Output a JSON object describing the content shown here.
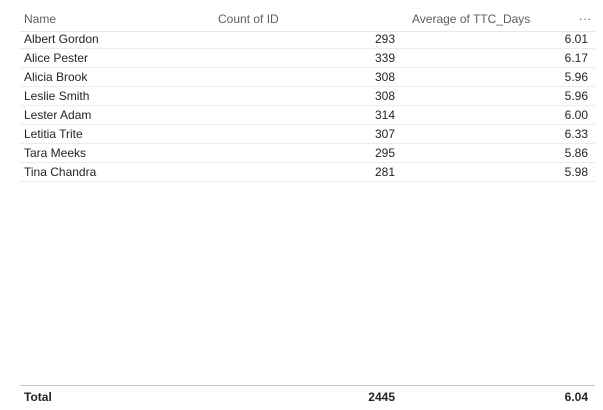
{
  "table": {
    "columns": {
      "name": "Name",
      "count": "Count of ID",
      "avg": "Average of TTC_Days"
    },
    "more_options": "...",
    "rows": [
      {
        "name": "Albert Gordon",
        "count": "293",
        "avg": "6.01"
      },
      {
        "name": "Alice Pester",
        "count": "339",
        "avg": "6.17"
      },
      {
        "name": "Alicia Brook",
        "count": "308",
        "avg": "5.96"
      },
      {
        "name": "Leslie Smith",
        "count": "308",
        "avg": "5.96"
      },
      {
        "name": "Lester Adam",
        "count": "314",
        "avg": "6.00"
      },
      {
        "name": "Letitia Trite",
        "count": "307",
        "avg": "6.33"
      },
      {
        "name": "Tara Meeks",
        "count": "295",
        "avg": "5.86"
      },
      {
        "name": "Tina Chandra",
        "count": "281",
        "avg": "5.98"
      }
    ],
    "total": {
      "label": "Total",
      "count": "2445",
      "avg": "6.04"
    }
  }
}
